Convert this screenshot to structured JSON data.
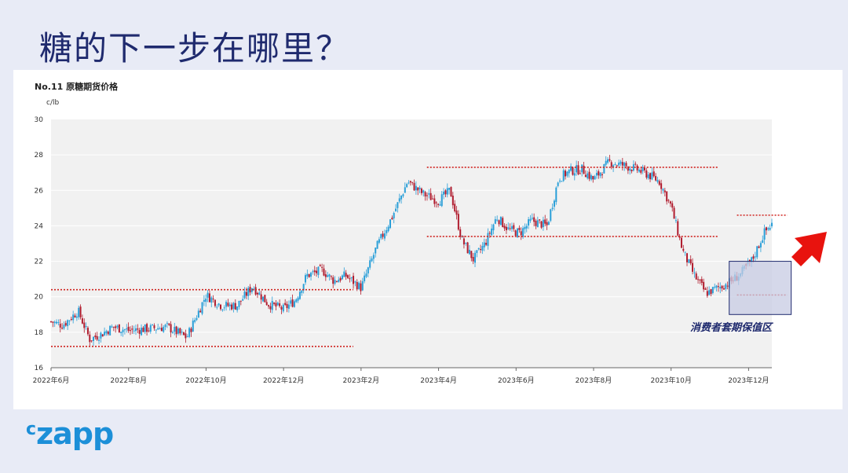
{
  "slide": {
    "title": "糖的下一步在哪里？",
    "logo_c": "c",
    "logo_rest": "zapp"
  },
  "colors": {
    "background": "#e8ebf6",
    "up_candle": "#2a9fd8",
    "down_candle": "#b01c2e",
    "level_lines": "#d0231f",
    "arrow": "#e8130e",
    "zone_fill": "#c7cbe3",
    "zone_border": "#1f2a6e",
    "annotation_text": "#1f2a6e"
  },
  "chart_data": {
    "type": "candlestick",
    "title": "No.11 原糖期货价格",
    "ylabel": "c/lb",
    "xlabel": "",
    "ylim": [
      16,
      30
    ],
    "yticks": [
      16,
      18,
      20,
      22,
      24,
      26,
      28,
      30
    ],
    "x_range": [
      "2022-06",
      "2024-01"
    ],
    "x_tick_labels": [
      "2022年6月",
      "2022年8月",
      "2022年10月",
      "2022年12月",
      "2023年2月",
      "2023年4月",
      "2023年6月",
      "2023年8月",
      "2023年10月",
      "2023年12月"
    ],
    "path_months": [
      0,
      0.3,
      0.7,
      1.0,
      1.3,
      1.6,
      2.0,
      2.5,
      3.0,
      3.5,
      4.0,
      4.4,
      4.8,
      5.2,
      5.6,
      6.0,
      6.3,
      6.6,
      7.0,
      7.3,
      7.6,
      8.0,
      8.4,
      8.8,
      9.2,
      9.6,
      10.0,
      10.3,
      10.6,
      10.9,
      11.2,
      11.5,
      11.8,
      12.1,
      12.4,
      12.8,
      13.1,
      13.4,
      13.7,
      14.0,
      14.4,
      14.8,
      15.1,
      15.4,
      15.7,
      16.0,
      16.3,
      16.6,
      16.9,
      17.2,
      17.5,
      17.8,
      18.1,
      18.4,
      18.6
    ],
    "path_close": [
      18.6,
      18.4,
      19.2,
      17.6,
      17.9,
      18.3,
      18.1,
      18.2,
      18.3,
      17.7,
      20.1,
      19.5,
      19.5,
      20.6,
      19.6,
      19.3,
      19.8,
      21.2,
      21.5,
      20.9,
      21.2,
      20.5,
      22.8,
      24.5,
      26.5,
      25.8,
      25.4,
      26.0,
      23.2,
      22.1,
      23.0,
      24.5,
      23.8,
      23.6,
      24.3,
      24.0,
      26.7,
      27.1,
      27.2,
      26.6,
      27.6,
      27.4,
      27.2,
      26.9,
      26.5,
      25.1,
      22.6,
      21.2,
      20.2,
      20.5,
      20.8,
      21.3,
      22.1,
      23.6,
      24.1
    ],
    "levels": [
      {
        "y": 17.2,
        "from_month": 0,
        "to_month": 7.8
      },
      {
        "y": 20.4,
        "from_month": 0,
        "to_month": 7.8
      },
      {
        "y": 23.4,
        "from_month": 9.7,
        "to_month": 17.2
      },
      {
        "y": 27.3,
        "from_month": 9.7,
        "to_month": 17.2
      },
      {
        "y": 24.6,
        "from_month": 17.7,
        "to_month": 19.0
      },
      {
        "y": 20.1,
        "from_month": 17.7,
        "to_month": 19.0
      }
    ],
    "zone": {
      "x_from_month": 17.5,
      "x_to_month": 19.1,
      "y_low": 19.0,
      "y_high": 22.0
    },
    "annotation": "消费者套期保值区"
  }
}
